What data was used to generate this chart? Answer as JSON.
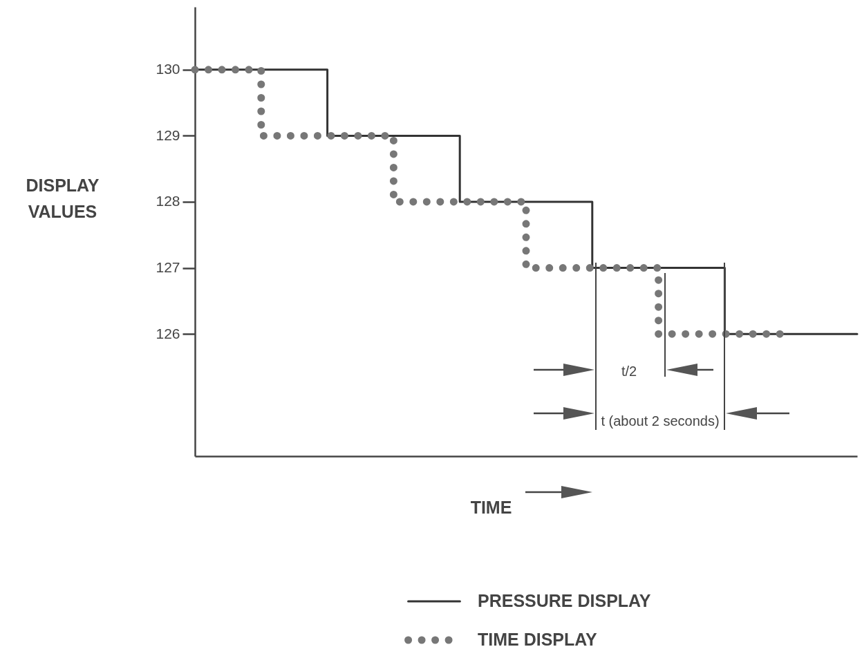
{
  "chart_data": {
    "type": "step",
    "xlabel": "TIME",
    "ylabel": "DISPLAY VALUES",
    "categories": [
      null,
      null,
      null,
      null,
      null,
      null,
      null,
      null,
      null,
      null,
      null
    ],
    "series": [
      {
        "name": "PRESSURE DISPLAY",
        "color": "#333333",
        "line_style": "solid",
        "values": [
          130,
          130,
          129,
          129,
          128,
          128,
          127,
          127,
          126,
          126,
          126
        ]
      },
      {
        "name": "TIME DISPLAY",
        "color": "#777777",
        "line_style": "dotted",
        "values": [
          130,
          129,
          129,
          128,
          128,
          127,
          127,
          126,
          126,
          126,
          null
        ]
      }
    ],
    "ylim": [
      124.15,
      130.95
    ],
    "yticks": [
      126,
      127,
      128,
      129,
      130
    ],
    "tick_labels": "y",
    "grid": false,
    "legend": "bottom",
    "marker": "none",
    "annotations": [
      "t/2",
      "t (about 2 seconds)"
    ]
  }
}
